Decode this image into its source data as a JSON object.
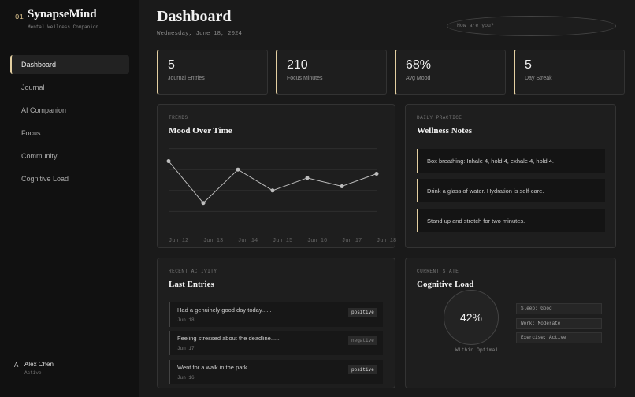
{
  "sidebar": {
    "brand": {
      "number": "01",
      "name": "SynapseMind",
      "tagline": "Mental Wellness Companion"
    },
    "nav": [
      "Dashboard",
      "Journal",
      "AI Companion",
      "Focus",
      "Community",
      "Cognitive Load"
    ],
    "user": {
      "initial": "A",
      "name": "Alex Chen",
      "status": "Active"
    }
  },
  "header": {
    "title": "Dashboard",
    "date": "Wednesday, June 18, 2024",
    "search_placeholder": "How are you?"
  },
  "stats": [
    {
      "value": 5,
      "label": "Journal Entries"
    },
    {
      "value": 210,
      "label": "Focus Minutes"
    },
    {
      "value": "68%",
      "label": "Avg Mood"
    },
    {
      "value": 5,
      "label": "Day Streak"
    }
  ],
  "chart_data": {
    "type": "line",
    "section_label": "TRENDS",
    "title": "Mood Over Time",
    "categories": [
      "Jun 12",
      "Jun 13",
      "Jun 14",
      "Jun 15",
      "Jun 16",
      "Jun 17",
      "Jun 18"
    ],
    "values": [
      3.4,
      1.4,
      3.0,
      2.0,
      2.6,
      2.2,
      2.8
    ],
    "ylim": [
      0,
      5
    ],
    "yticks": [
      1,
      2,
      3,
      4
    ],
    "grid": true,
    "color": "#bdbdbd"
  },
  "wellness": {
    "section_label": "DAILY PRACTICE",
    "title": "Wellness Notes",
    "notes": [
      "Box breathing: Inhale 4, hold 4, exhale 4, hold 4.",
      "Drink a glass of water. Hydration is self-care.",
      "Stand up and stretch for two minutes."
    ]
  },
  "entries": {
    "section_label": "RECENT ACTIVITY",
    "title": "Last Entries",
    "items": [
      {
        "text": "Had a genuinely good day today......",
        "date": "Jun 18",
        "tag": "positive"
      },
      {
        "text": "Feeling stressed about the deadline......",
        "date": "Jun 17",
        "tag": "negative"
      },
      {
        "text": "Went for a walk in the park......",
        "date": "Jun 16",
        "tag": "positive"
      }
    ]
  },
  "cognitive": {
    "section_label": "CURRENT STATE",
    "title": "Cognitive Load",
    "value": "42%",
    "caption": "Within Optimal",
    "chips": [
      "Sleep: Good",
      "Work: Moderate",
      "Exercise: Active"
    ]
  }
}
